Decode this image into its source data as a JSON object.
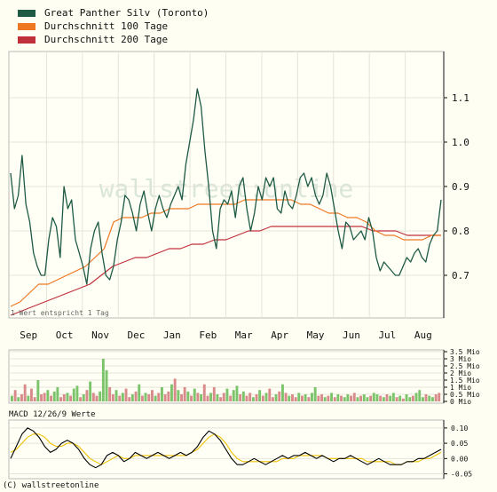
{
  "legend": [
    {
      "label": "Great Panther Silv (Toronto)",
      "color": "#1e5a44"
    },
    {
      "label": "Durchschnitt 100 Tage",
      "color": "#ee7722"
    },
    {
      "label": "Durchschnitt 200 Tage",
      "color": "#c0303a"
    }
  ],
  "watermark": "wallstreet:online",
  "footer": "(C) wallstreetonline",
  "chart_data": [
    {
      "type": "line",
      "title": "",
      "months": [
        "Sep",
        "Oct",
        "Nov",
        "Dec",
        "Jan",
        "Feb",
        "Mar",
        "Apr",
        "May",
        "Jun",
        "Jul",
        "Aug"
      ],
      "yticks": [
        "0.7",
        "0.8",
        "0.9",
        "1.0",
        "1.1"
      ],
      "ylim": [
        0.61,
        1.2
      ],
      "note": "1 Wert entspricht 1 Tag",
      "series": [
        {
          "name": "Great Panther Silv (Toronto)",
          "color": "#1e5a44",
          "values": [
            0.93,
            0.85,
            0.88,
            0.97,
            0.86,
            0.82,
            0.75,
            0.72,
            0.7,
            0.7,
            0.78,
            0.83,
            0.81,
            0.74,
            0.9,
            0.85,
            0.87,
            0.78,
            0.75,
            0.72,
            0.68,
            0.76,
            0.8,
            0.82,
            0.75,
            0.7,
            0.69,
            0.72,
            0.78,
            0.82,
            0.88,
            0.87,
            0.84,
            0.8,
            0.86,
            0.89,
            0.84,
            0.8,
            0.85,
            0.88,
            0.85,
            0.83,
            0.86,
            0.88,
            0.9,
            0.87,
            0.95,
            1.0,
            1.05,
            1.12,
            1.08,
            0.98,
            0.9,
            0.8,
            0.76,
            0.85,
            0.87,
            0.86,
            0.89,
            0.83,
            0.9,
            0.92,
            0.85,
            0.8,
            0.84,
            0.9,
            0.87,
            0.92,
            0.9,
            0.92,
            0.85,
            0.84,
            0.89,
            0.86,
            0.85,
            0.88,
            0.92,
            0.93,
            0.9,
            0.92,
            0.88,
            0.86,
            0.88,
            0.93,
            0.9,
            0.85,
            0.8,
            0.76,
            0.82,
            0.81,
            0.78,
            0.79,
            0.8,
            0.78,
            0.83,
            0.8,
            0.74,
            0.71,
            0.73,
            0.72,
            0.71,
            0.7,
            0.7,
            0.72,
            0.74,
            0.73,
            0.75,
            0.76,
            0.74,
            0.73,
            0.77,
            0.79,
            0.8,
            0.87
          ]
        },
        {
          "name": "Durchschnitt 100 Tage",
          "color": "#ee7722",
          "values": [
            0.63,
            0.64,
            0.66,
            0.68,
            0.68,
            0.69,
            0.7,
            0.71,
            0.72,
            0.74,
            0.76,
            0.82,
            0.83,
            0.83,
            0.83,
            0.84,
            0.84,
            0.85,
            0.85,
            0.85,
            0.86,
            0.86,
            0.86,
            0.86,
            0.86,
            0.87,
            0.87,
            0.87,
            0.87,
            0.87,
            0.87,
            0.86,
            0.86,
            0.85,
            0.84,
            0.84,
            0.83,
            0.83,
            0.82,
            0.8,
            0.79,
            0.79,
            0.78,
            0.78,
            0.78,
            0.79,
            0.79
          ]
        },
        {
          "name": "Durchschnitt 200 Tage",
          "color": "#c0303a",
          "values": [
            0.61,
            0.62,
            0.63,
            0.64,
            0.65,
            0.66,
            0.67,
            0.68,
            0.7,
            0.72,
            0.73,
            0.74,
            0.74,
            0.75,
            0.76,
            0.76,
            0.77,
            0.77,
            0.78,
            0.78,
            0.79,
            0.8,
            0.8,
            0.81,
            0.81,
            0.81,
            0.81,
            0.81,
            0.81,
            0.81,
            0.81,
            0.81,
            0.8,
            0.8,
            0.8,
            0.79,
            0.79,
            0.79,
            0.79
          ]
        }
      ]
    },
    {
      "type": "bar",
      "title": "",
      "yticks": [
        "0 Mio",
        "0.5 Mio",
        "1 Mio",
        "1.5 Mio",
        "2 Mio",
        "2.5 Mio",
        "3 Mio",
        "3.5 Mio"
      ],
      "ylim": [
        0,
        3.5
      ],
      "series": [
        {
          "name": "",
          "up_color": "#7cc46b",
          "down_color": "#d98a8a",
          "values": [
            0.4,
            0.8,
            0.3,
            0.5,
            1.2,
            0.4,
            0.9,
            0.3,
            1.5,
            0.5,
            0.6,
            0.8,
            0.4,
            0.7,
            1.0,
            0.3,
            0.5,
            0.6,
            0.4,
            0.9,
            1.1,
            0.3,
            0.5,
            0.8,
            1.4,
            0.6,
            0.4,
            0.7,
            3.0,
            2.2,
            1.0,
            0.5,
            0.8,
            0.4,
            0.6,
            0.9,
            0.3,
            0.5,
            0.7,
            1.2,
            0.4,
            0.6,
            0.5,
            0.8,
            0.4,
            0.6,
            1.0,
            0.5,
            0.7,
            1.2,
            1.6,
            0.8,
            0.5,
            1.0,
            0.7,
            0.4,
            0.9,
            0.6,
            0.5,
            1.2,
            0.4,
            0.6,
            1.0,
            0.5,
            0.3,
            0.6,
            0.9,
            0.4,
            0.8,
            1.1,
            0.5,
            0.7,
            0.4,
            0.6,
            0.3,
            0.5,
            0.8,
            0.4,
            0.6,
            0.9,
            0.3,
            0.5,
            0.7,
            1.2,
            0.6,
            0.4,
            0.5,
            0.3,
            0.6,
            0.4,
            0.5,
            0.3,
            0.6,
            1.0,
            0.4,
            0.5,
            0.3,
            0.4,
            0.6,
            0.3,
            0.5,
            0.4,
            0.3,
            0.5,
            0.4,
            0.6,
            0.3,
            0.4,
            0.5,
            0.3,
            0.4,
            0.6,
            0.5,
            0.4,
            0.3,
            0.5,
            0.4,
            0.6,
            0.3,
            0.4,
            0.2,
            0.5,
            0.3,
            0.4,
            0.6,
            0.8,
            0.3,
            0.5,
            0.4,
            0.3,
            0.5,
            0.6
          ],
          "up": [
            1,
            0,
            1,
            0,
            0,
            1,
            0,
            0,
            1,
            0,
            0,
            1,
            0,
            1,
            1,
            0,
            0,
            1,
            0,
            1,
            1,
            0,
            1,
            0,
            1,
            0,
            0,
            1,
            1,
            1,
            0,
            0,
            1,
            0,
            1,
            0,
            0,
            1,
            0,
            1,
            0,
            1,
            0,
            0,
            1,
            0,
            1,
            0,
            0,
            1,
            0,
            1,
            0,
            0,
            1,
            0,
            1,
            0,
            1,
            0,
            0,
            1,
            0,
            1,
            0,
            0,
            1,
            0,
            1,
            1,
            0,
            1,
            0,
            0,
            1,
            0,
            1,
            0,
            1,
            0,
            0,
            1,
            0,
            1,
            0,
            1,
            0,
            0,
            1,
            0,
            1,
            0,
            1,
            1,
            0,
            0,
            1,
            0,
            1,
            0,
            1,
            0,
            1,
            1,
            0,
            0,
            1,
            0,
            1,
            1,
            0,
            1,
            1,
            0,
            1,
            0,
            1,
            1,
            0,
            1,
            0,
            1,
            1,
            0,
            1,
            1,
            1,
            0,
            1,
            1
          ]
        }
      ]
    },
    {
      "type": "line",
      "title": "MACD 12/26/9 Werte",
      "yticks": [
        "-0.05",
        "0.00",
        "0.05",
        "0.10"
      ],
      "ylim": [
        -0.06,
        0.12
      ],
      "series": [
        {
          "name": "",
          "color": "#000000",
          "values": [
            0.0,
            0.04,
            0.08,
            0.1,
            0.09,
            0.07,
            0.04,
            0.02,
            0.03,
            0.05,
            0.06,
            0.05,
            0.03,
            0.0,
            -0.02,
            -0.03,
            -0.02,
            0.01,
            0.02,
            0.01,
            -0.01,
            0.0,
            0.02,
            0.01,
            0.0,
            0.01,
            0.02,
            0.01,
            0.0,
            0.01,
            0.02,
            0.01,
            0.02,
            0.04,
            0.07,
            0.09,
            0.08,
            0.06,
            0.03,
            0.0,
            -0.02,
            -0.02,
            -0.01,
            0.0,
            -0.01,
            -0.02,
            -0.01,
            0.0,
            0.01,
            0.0,
            0.01,
            0.01,
            0.02,
            0.01,
            0.0,
            0.01,
            0.0,
            -0.01,
            0.0,
            0.0,
            0.01,
            0.0,
            -0.01,
            -0.02,
            -0.01,
            0.0,
            -0.01,
            -0.02,
            -0.02,
            -0.02,
            -0.01,
            -0.01,
            0.0,
            0.0,
            0.01,
            0.02,
            0.03
          ]
        },
        {
          "name": "",
          "color": "#f0c000",
          "values": [
            0.02,
            0.03,
            0.05,
            0.07,
            0.08,
            0.08,
            0.07,
            0.05,
            0.04,
            0.04,
            0.05,
            0.05,
            0.04,
            0.02,
            0.0,
            -0.01,
            -0.02,
            -0.01,
            0.0,
            0.01,
            0.0,
            0.0,
            0.01,
            0.01,
            0.01,
            0.01,
            0.01,
            0.01,
            0.01,
            0.01,
            0.01,
            0.01,
            0.02,
            0.03,
            0.05,
            0.07,
            0.08,
            0.07,
            0.05,
            0.02,
            0.0,
            -0.01,
            -0.01,
            -0.01,
            -0.01,
            -0.01,
            -0.01,
            -0.01,
            0.0,
            0.0,
            0.0,
            0.01,
            0.01,
            0.01,
            0.01,
            0.01,
            0.0,
            0.0,
            0.0,
            0.0,
            0.0,
            0.0,
            0.0,
            -0.01,
            -0.01,
            -0.01,
            -0.01,
            -0.01,
            -0.02,
            -0.02,
            -0.01,
            -0.01,
            -0.01,
            0.0,
            0.0,
            0.01,
            0.02
          ]
        }
      ]
    }
  ]
}
